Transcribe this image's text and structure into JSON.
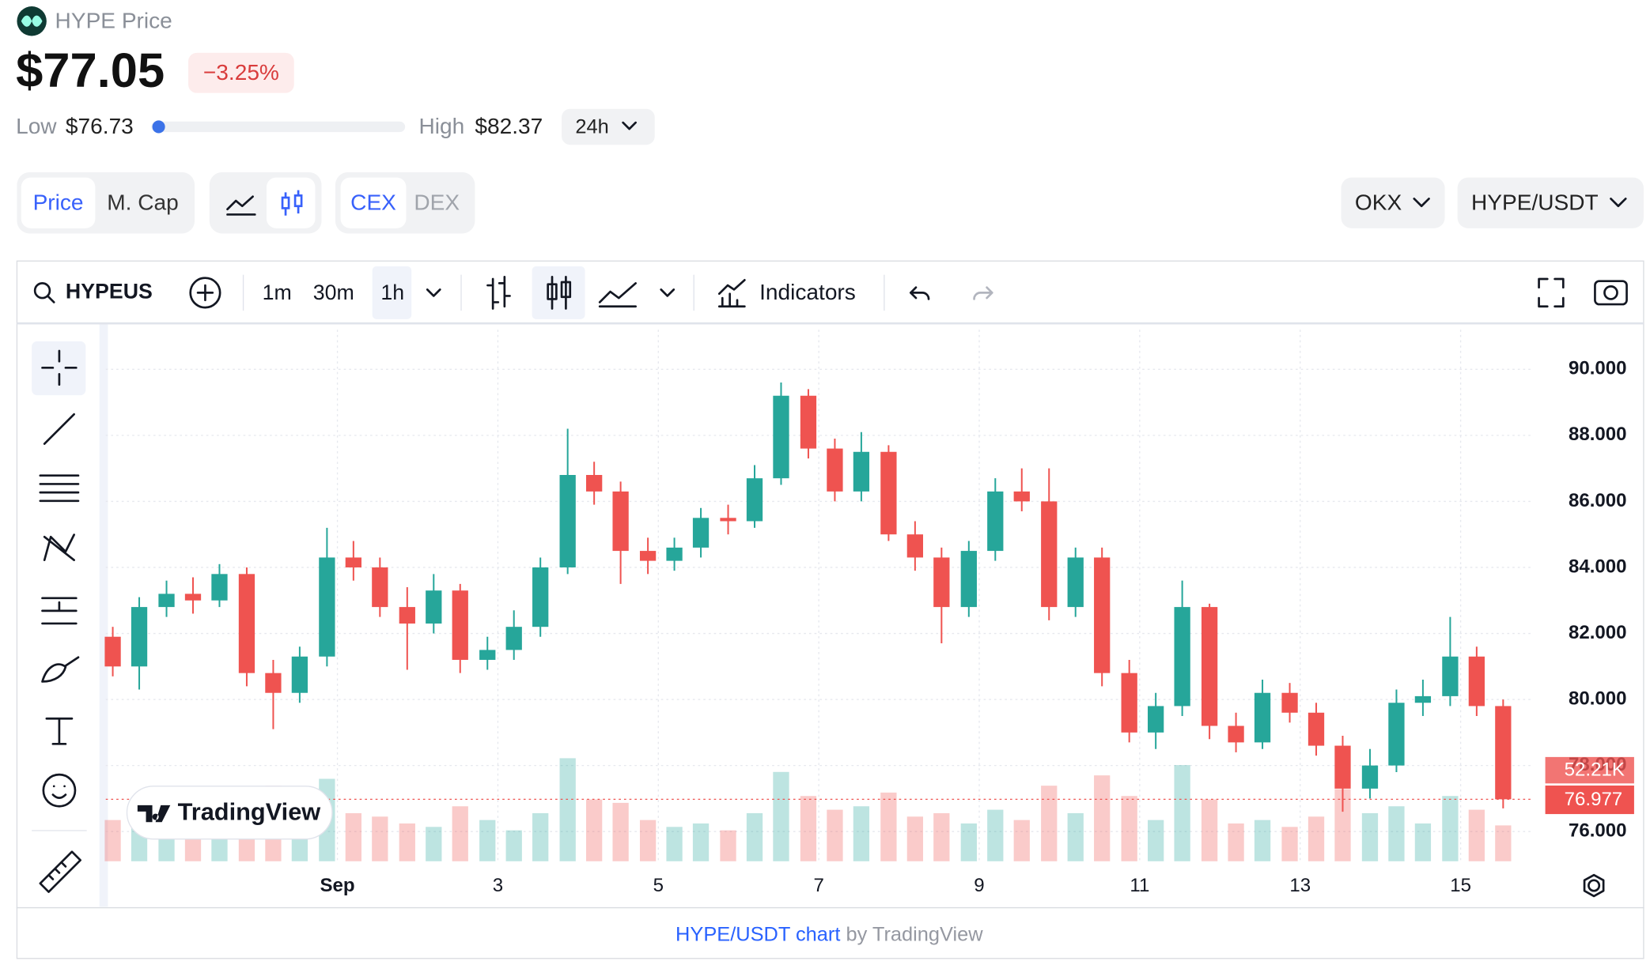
{
  "header": {
    "title": "HYPE Price",
    "price": "$77.05",
    "change": "−3.25%",
    "low_label": "Low",
    "low": "$76.73",
    "high_label": "High",
    "high": "$82.37",
    "period": "24h"
  },
  "tabs": {
    "price": "Price",
    "mcap": "M. Cap",
    "cex": "CEX",
    "dex": "DEX",
    "exchange": "OKX",
    "pair": "HYPE/USDT"
  },
  "toolbar": {
    "symbol": "HYPEUS",
    "intervals": [
      "1m",
      "30m",
      "1h"
    ],
    "indicators": "Indicators"
  },
  "logo": "TradingView",
  "footer": {
    "link": "HYPE/USDT chart",
    "by": "by TradingView"
  },
  "chart_data": {
    "type": "candlestick",
    "up_color": "#26a69a",
    "down_color": "#ef5350",
    "x": [
      -1.8,
      -1.47,
      -1.13,
      -0.8,
      -0.47,
      -0.13,
      0.2,
      0.53,
      0.87,
      1.2,
      1.53,
      1.87,
      2.2,
      2.53,
      2.87,
      3.2,
      3.53,
      3.87,
      4.2,
      4.53,
      4.87,
      5.2,
      5.53,
      5.87,
      6.2,
      6.53,
      6.87,
      7.2,
      7.53,
      7.87,
      8.2,
      8.53,
      8.87,
      9.2,
      9.53,
      9.87,
      10.2,
      10.53,
      10.87,
      11.2,
      11.53,
      11.87,
      12.2,
      12.53,
      12.87,
      13.2,
      13.53,
      13.87,
      14.2,
      14.53,
      14.87,
      15.2,
      15.53
    ],
    "open": [
      81.9,
      81.0,
      82.8,
      83.2,
      83.0,
      83.8,
      80.8,
      80.2,
      81.3,
      84.3,
      84.0,
      82.8,
      82.3,
      83.3,
      81.2,
      81.5,
      82.2,
      84.0,
      86.8,
      86.3,
      84.5,
      84.2,
      84.6,
      85.5,
      85.4,
      86.7,
      89.2,
      87.6,
      86.3,
      87.5,
      85.0,
      84.3,
      82.8,
      84.5,
      86.3,
      86.0,
      82.8,
      84.3,
      80.8,
      79.0,
      79.8,
      82.8,
      79.2,
      78.7,
      80.2,
      79.6,
      78.6,
      77.3,
      78.0,
      79.9,
      80.1,
      81.3,
      79.8
    ],
    "high": [
      82.2,
      83.1,
      83.6,
      83.7,
      84.1,
      84.0,
      81.2,
      81.6,
      85.2,
      84.8,
      84.3,
      83.4,
      83.8,
      83.5,
      81.9,
      82.7,
      84.3,
      88.2,
      87.2,
      86.6,
      84.9,
      84.9,
      85.8,
      85.9,
      87.1,
      89.6,
      89.4,
      87.9,
      88.1,
      87.7,
      85.4,
      84.6,
      84.8,
      86.7,
      87.0,
      87.0,
      84.6,
      84.6,
      81.2,
      80.2,
      83.6,
      82.9,
      79.6,
      80.6,
      80.5,
      79.9,
      78.9,
      78.5,
      80.3,
      80.6,
      82.5,
      81.6,
      80.0
    ],
    "low": [
      80.7,
      80.3,
      82.5,
      82.6,
      82.8,
      80.4,
      79.1,
      79.9,
      81.0,
      83.6,
      82.5,
      80.9,
      82.0,
      80.8,
      80.9,
      81.2,
      81.9,
      83.8,
      85.9,
      83.5,
      83.8,
      83.9,
      84.3,
      85.0,
      85.2,
      86.5,
      87.3,
      86.0,
      86.0,
      84.8,
      83.9,
      81.7,
      82.5,
      84.2,
      85.7,
      82.4,
      82.5,
      80.4,
      78.7,
      78.5,
      79.5,
      78.8,
      78.4,
      78.5,
      79.3,
      78.3,
      76.6,
      77.0,
      77.8,
      79.5,
      79.8,
      79.5,
      76.7
    ],
    "close": [
      81.0,
      82.8,
      83.2,
      83.0,
      83.8,
      80.8,
      80.2,
      81.3,
      84.3,
      84.0,
      82.8,
      82.3,
      83.3,
      81.2,
      81.5,
      82.2,
      84.0,
      86.8,
      86.3,
      84.5,
      84.2,
      84.6,
      85.5,
      85.4,
      86.7,
      89.2,
      87.6,
      86.3,
      87.5,
      85.0,
      84.3,
      82.8,
      84.5,
      86.3,
      86.0,
      82.8,
      84.3,
      80.8,
      79.0,
      79.8,
      82.8,
      79.2,
      78.7,
      80.2,
      79.6,
      78.6,
      77.3,
      78.0,
      79.9,
      80.1,
      81.3,
      79.8,
      76.977
    ],
    "volume": {
      "values": [
        60000,
        75000,
        45000,
        50000,
        55000,
        90000,
        110000,
        60000,
        120000,
        70000,
        65000,
        55000,
        50000,
        80000,
        60000,
        45000,
        70000,
        150000,
        90000,
        85000,
        60000,
        50000,
        55000,
        45000,
        70000,
        130000,
        95000,
        75000,
        80000,
        100000,
        65000,
        70000,
        55000,
        75000,
        60000,
        110000,
        70000,
        125000,
        95000,
        60000,
        140000,
        90000,
        55000,
        60000,
        50000,
        65000,
        105000,
        70000,
        80000,
        55000,
        95000,
        75000,
        52210
      ],
      "last_label": "52.21K",
      "vlim": [
        0,
        200000
      ]
    },
    "xlim": [
      -1.887,
      15.91
    ],
    "xticks": [
      {
        "value": 1,
        "label": "Sep"
      },
      3,
      5,
      7,
      9,
      11,
      13,
      15
    ],
    "ylim": [
      75.1,
      91.2
    ],
    "yticks": [
      {
        "value": 76,
        "label": "76.000"
      },
      {
        "value": 78,
        "label": "78.000"
      },
      {
        "value": 80,
        "label": "80.000"
      },
      {
        "value": 82,
        "label": "82.000"
      },
      {
        "value": 84,
        "label": "84.000"
      },
      {
        "value": 86,
        "label": "86.000"
      },
      {
        "value": 88,
        "label": "88.000"
      },
      {
        "value": 90,
        "label": "90.000"
      }
    ],
    "grid": true
  }
}
